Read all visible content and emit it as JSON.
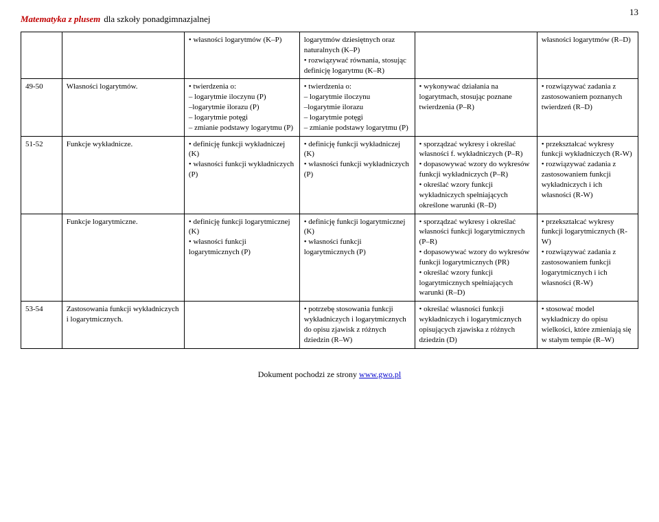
{
  "page": {
    "number": "13",
    "title_red": "Matematyka z plusem",
    "title_black": " dla szkoły ponadgimnazjalnej"
  },
  "footer": {
    "text": "Dokument pochodzi ze strony ",
    "link": "www.gwo.pl"
  },
  "rows": [
    {
      "num": "",
      "topic": "",
      "c1": "• własności logarytmów (K–P)",
      "c2": "logarytmów dziesiętnych oraz naturalnych (K–P)\n• rozwiązywać równania, stosując definicję logarytmu (K–R)",
      "c3": "",
      "c4": "własności logarytmów (R–D)"
    },
    {
      "num": "49-50",
      "topic": "Własności logarytmów.",
      "c1": "• twierdzenia o:\n– logarytmie iloczynu (P)\n–logarytmie ilorazu (P)\n– logarytmie potęgi\n– zmianie podstawy logarytmu (P)",
      "c2": "• twierdzenia o:\n– logarytmie iloczynu\n–logarytmie ilorazu\n– logarytmie potęgi\n– zmianie podstawy logarytmu (P)",
      "c3": "• wykonywać działania na logarytmach, stosując poznane twierdzenia (P–R)",
      "c4": "• rozwiązywać zadania z zastosowaniem poznanych twierdzeń (R–D)"
    },
    {
      "num": "51-52",
      "topic": "Funkcje wykładnicze.",
      "c1": "• definicję funkcji wykładniczej (K)\n• własności funkcji wykładniczych (P)",
      "c2": "• definicję funkcji wykładniczej (K)\n• własności funkcji wykładniczych (P)",
      "c3": "• sporządzać wykresy i określać własności f. wykładniczych (P–R)\n• dopasowywać wzory do wykresów funkcji wykładniczych (P–R)\n• określać wzory funkcji wykładniczych spełniających określone warunki (R–D)",
      "c4": "• przekształcać wykresy funkcji wykładniczych (R-W)\n• rozwiązywać zadania z zastosowaniem funkcji wykładniczych i ich własności (R-W)"
    },
    {
      "num": "",
      "topic": "Funkcje logarytmiczne.",
      "c1": "• definicję funkcji logarytmicznej (K)\n• własności funkcji logarytmicznych (P)",
      "c2": "• definicję funkcji logarytmicznej (K)\n• własności funkcji logarytmicznych (P)",
      "c3": "• sporządzać wykresy i określać własności funkcji logarytmicznych (P–R)\n• dopasowywać wzory do wykresów funkcji logarytmicznych (PR)\n• określać wzory funkcji logarytmicznych spełniających warunki (R–D)",
      "c4": "• przekształcać wykresy funkcji logarytmicznych (R-W)\n• rozwiązywać zadania z zastosowaniem funkcji logarytmicznych i ich własności (R-W)"
    },
    {
      "num": "53-54",
      "topic": "Zastosowania funkcji wykładniczych i logarytmicznych.",
      "c1": "",
      "c2": "• potrzebę stosowania funkcji wykładniczych i logarytmicznych do opisu zjawisk z różnych dziedzin (R–W)",
      "c3": "• określać własności funkcji wykładniczych i logarytmicznych opisujących zjawiska z różnych dziedzin (D)",
      "c4": "• stosować model wykładniczy do opisu wielkości, które zmieniają się w stałym tempie (R–W)"
    }
  ]
}
